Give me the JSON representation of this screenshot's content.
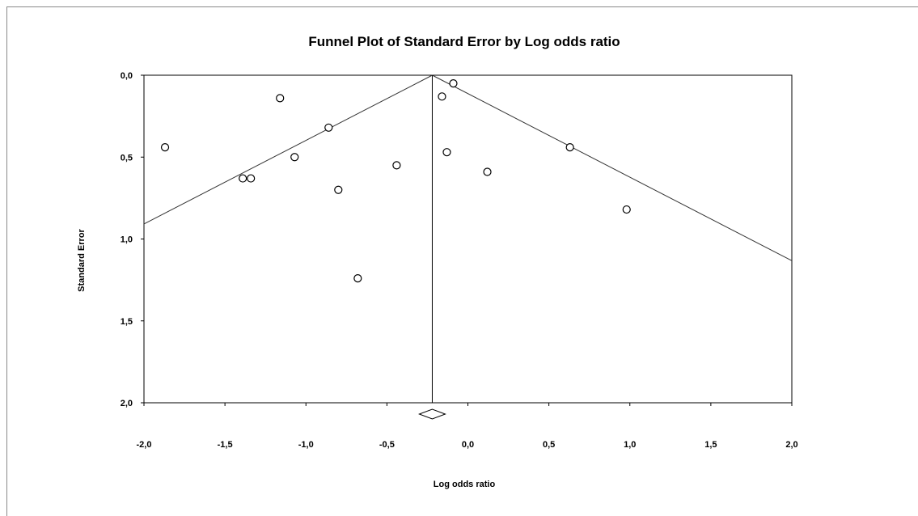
{
  "chart_data": {
    "type": "scatter",
    "title": "Funnel Plot of Standard Error by Log odds ratio",
    "xlabel": "Log odds ratio",
    "ylabel": "Standard Error",
    "xlim": [
      -2.0,
      2.0
    ],
    "ylim": [
      0.0,
      2.0
    ],
    "y_inverted": true,
    "grid": false,
    "legend": "none",
    "x_ticks": [
      -2.0,
      -1.5,
      -1.0,
      -0.5,
      0.0,
      0.5,
      1.0,
      1.5,
      2.0
    ],
    "x_tick_labels": [
      "-2,0",
      "-1,5",
      "-1,0",
      "-0,5",
      "0,0",
      "0,5",
      "1,0",
      "1,5",
      "2,0"
    ],
    "y_ticks": [
      0.0,
      0.5,
      1.0,
      1.5,
      2.0
    ],
    "y_tick_labels": [
      "0,0",
      "0,5",
      "1,0",
      "1,5",
      "2,0"
    ],
    "pooled_estimate": -0.22,
    "funnel_multiplier": 1.96,
    "points": [
      {
        "x": -1.87,
        "y": 0.44
      },
      {
        "x": -1.39,
        "y": 0.63
      },
      {
        "x": -1.34,
        "y": 0.63
      },
      {
        "x": -1.16,
        "y": 0.14
      },
      {
        "x": -1.07,
        "y": 0.5
      },
      {
        "x": -0.86,
        "y": 0.32
      },
      {
        "x": -0.8,
        "y": 0.7
      },
      {
        "x": -0.68,
        "y": 1.24
      },
      {
        "x": -0.44,
        "y": 0.55
      },
      {
        "x": -0.16,
        "y": 0.13
      },
      {
        "x": -0.13,
        "y": 0.47
      },
      {
        "x": -0.09,
        "y": 0.05
      },
      {
        "x": 0.12,
        "y": 0.59
      },
      {
        "x": 0.63,
        "y": 0.44
      },
      {
        "x": 0.98,
        "y": 0.82
      }
    ]
  }
}
